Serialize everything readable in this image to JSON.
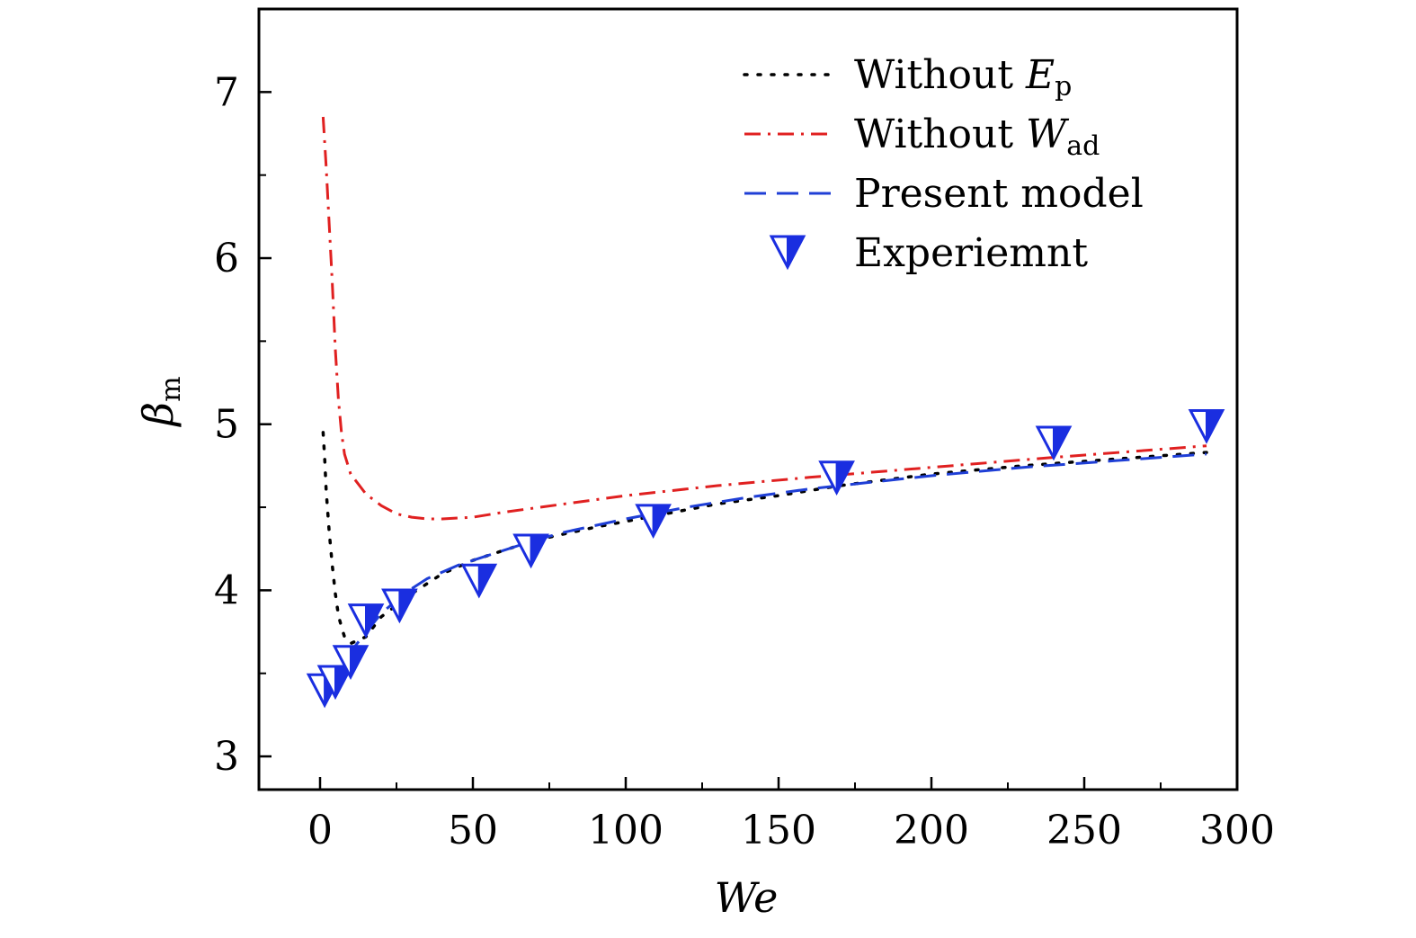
{
  "chart_data": {
    "type": "line",
    "xlabel": "We",
    "ylabel": {
      "base": "β",
      "sub": "m"
    },
    "xlim": [
      -20,
      300
    ],
    "ylim": [
      2.8,
      7.5
    ],
    "xticks": [
      "0",
      "50",
      "100",
      "150",
      "200",
      "250",
      "300"
    ],
    "xtick_values": [
      0,
      50,
      100,
      150,
      200,
      250,
      300
    ],
    "yticks": [
      "3",
      "4",
      "5",
      "6",
      "7"
    ],
    "ytick_values": [
      3,
      4,
      5,
      6,
      7
    ],
    "legend_position": "top-right",
    "series": [
      {
        "name": "Without E_p",
        "legend_main": "Without ",
        "legend_sym": "E",
        "legend_sub": "p",
        "style": "dotted",
        "color": "#000000",
        "x": [
          1.0,
          1.5,
          2.0,
          3.0,
          4.0,
          5.0,
          6.0,
          7.0,
          8.0,
          10.0,
          15.0,
          20.0,
          30.0,
          40.0,
          50.0,
          60.0,
          70.0,
          90.0,
          110.0,
          130.0,
          150.0,
          170.0,
          200.0,
          230.0,
          260.0,
          290.0
        ],
        "y": [
          4.95,
          4.8,
          4.6,
          4.35,
          4.15,
          3.98,
          3.85,
          3.78,
          3.72,
          3.68,
          3.72,
          3.84,
          3.98,
          4.1,
          4.18,
          4.24,
          4.3,
          4.38,
          4.45,
          4.52,
          4.57,
          4.63,
          4.7,
          4.75,
          4.79,
          4.83
        ]
      },
      {
        "name": "Without W_ad",
        "legend_main": "Without ",
        "legend_sym": "W",
        "legend_sub": "ad",
        "style": "dash-dot",
        "color": "#e02020",
        "x": [
          1.0,
          2.0,
          3.0,
          4.0,
          5.0,
          6.0,
          7.0,
          8.0,
          10.0,
          15.0,
          20.0,
          25.0,
          30.0,
          35.0,
          40.0,
          50.0,
          60.0,
          80.0,
          100.0,
          130.0,
          160.0,
          200.0,
          240.0,
          290.0
        ],
        "y": [
          6.85,
          6.55,
          6.2,
          5.85,
          5.45,
          5.15,
          4.95,
          4.82,
          4.7,
          4.58,
          4.51,
          4.46,
          4.44,
          4.43,
          4.43,
          4.44,
          4.47,
          4.52,
          4.57,
          4.63,
          4.68,
          4.74,
          4.8,
          4.87
        ]
      },
      {
        "name": "Present model",
        "legend_main": "Present model",
        "legend_sym": "",
        "legend_sub": "",
        "style": "dashed",
        "color": "#1f3fd6",
        "x": [
          1.0,
          2.0,
          4.0,
          6.0,
          8.0,
          10.0,
          13.0,
          16.0,
          20.0,
          25.0,
          30.0,
          35.0,
          40.0,
          45.0,
          50.0,
          55.0,
          60.0,
          70.0,
          80.0,
          90.0,
          100.0,
          120.0,
          140.0,
          160.0,
          180.0,
          200.0,
          230.0,
          260.0,
          290.0
        ],
        "y": [
          3.45,
          3.48,
          3.51,
          3.55,
          3.59,
          3.63,
          3.7,
          3.77,
          3.86,
          3.94,
          4.01,
          4.07,
          4.11,
          4.15,
          4.18,
          4.21,
          4.24,
          4.3,
          4.35,
          4.39,
          4.43,
          4.5,
          4.56,
          4.61,
          4.65,
          4.69,
          4.74,
          4.78,
          4.82
        ]
      },
      {
        "name": "Experiemnt",
        "legend_main": "Experiemnt",
        "legend_sym": "",
        "legend_sub": "",
        "style": "marker",
        "color": "#1a2ee0",
        "x": [
          1.5,
          5.0,
          10.0,
          15.0,
          26.0,
          52.0,
          69.0,
          109.0,
          169.0,
          240.0,
          290.0
        ],
        "y": [
          3.4,
          3.45,
          3.57,
          3.82,
          3.91,
          4.06,
          4.24,
          4.42,
          4.68,
          4.89,
          4.99
        ]
      }
    ]
  }
}
